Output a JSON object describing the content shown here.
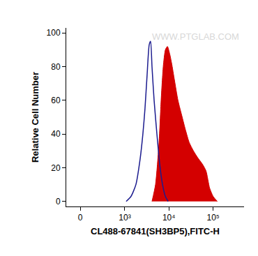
{
  "chart_data": {
    "type": "line",
    "xlabel": "CL488-67841(SH3BP5),FITC-H",
    "ylabel": "Relative Cell Number",
    "annotations": [
      {
        "text": "WWW.PTGLAB.COM"
      }
    ],
    "grid": false,
    "xlim": [
      -160,
      500000
    ],
    "ylim": [
      -3,
      103
    ],
    "xticks": [
      0,
      {
        "value": 1000,
        "label": "10³"
      },
      {
        "value": 10000,
        "label": "10⁴"
      },
      {
        "value": 100000,
        "label": "10⁵"
      }
    ],
    "yticks": [
      0,
      20,
      40,
      60,
      80,
      100
    ],
    "series": [
      {
        "type": "area",
        "color": "#d40000",
        "x": [
          4159,
          4989,
          5998,
          6683,
          7463,
          8336,
          9290,
          10370,
          11570,
          13400,
          16070,
          20040,
          24040,
          28840,
          35940,
          44770,
          57810,
          69340,
          83330,
          100000,
          124500
        ],
        "values": [
          0,
          10,
          35,
          60,
          80,
          90,
          92,
          88,
          82,
          72,
          60,
          50,
          42,
          35,
          30,
          26,
          22,
          18,
          8,
          3,
          0
        ]
      },
      {
        "type": "line",
        "color": "#1c1c8f",
        "x": [
          1076,
          1390,
          1795,
          2234,
          2585,
          2884,
          3221,
          3597,
          3866,
          4159,
          4642,
          5370,
          6219,
          7197,
          8336,
          9641
        ],
        "values": [
          0,
          3,
          10,
          25,
          40,
          55,
          75,
          93,
          95,
          80,
          60,
          40,
          22,
          10,
          3,
          0
        ]
      }
    ]
  }
}
